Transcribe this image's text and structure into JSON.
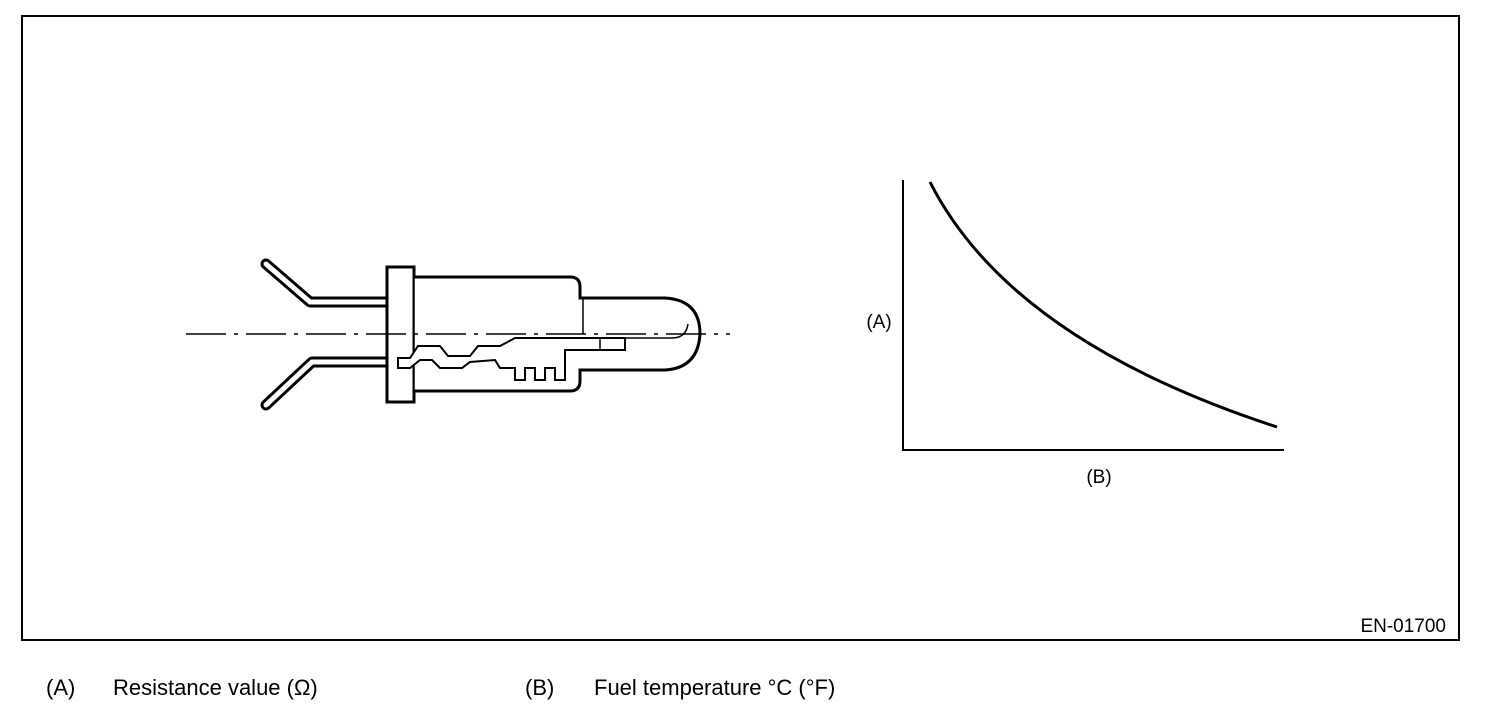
{
  "figure": {
    "axis_labels": {
      "y": "(A)",
      "x": "(B)"
    },
    "code": "EN-01700"
  },
  "legend": [
    {
      "key": "(A)",
      "text": "Resistance value (Ω)"
    },
    {
      "key": "(B)",
      "text": "Fuel temperature °C (°F)"
    }
  ]
}
